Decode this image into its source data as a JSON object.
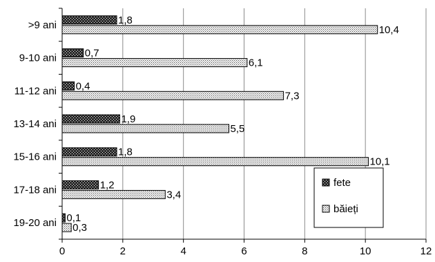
{
  "chart_data": {
    "type": "bar",
    "orientation": "horizontal",
    "categories": [
      "19-20 ani",
      "17-18 ani",
      "15-16 ani",
      "13-14 ani",
      "11-12 ani",
      "9-10 ani",
      ">9 ani"
    ],
    "series": [
      {
        "name": "fete",
        "values": [
          0.1,
          1.2,
          1.8,
          1.9,
          0.4,
          0.7,
          1.8
        ],
        "labels": [
          "0,1",
          "1,2",
          "1,8",
          "1,9",
          "0,4",
          "0,7",
          "1,8"
        ]
      },
      {
        "name": "băieți",
        "values": [
          0.3,
          3.4,
          10.1,
          5.5,
          7.3,
          6.1,
          10.4
        ],
        "labels": [
          "0,3",
          "3,4",
          "10,1",
          "5,5",
          "7,3",
          "6,1",
          "10,4"
        ]
      }
    ],
    "xlim": [
      0,
      12
    ],
    "xticks": [
      0,
      2,
      4,
      6,
      8,
      10,
      12
    ],
    "xlabel": "",
    "ylabel": "",
    "grid": "vertical",
    "legend": "bottom-right",
    "colors": {
      "fete": "#1f1f1f",
      "băieți": "#c8c8c8"
    }
  }
}
